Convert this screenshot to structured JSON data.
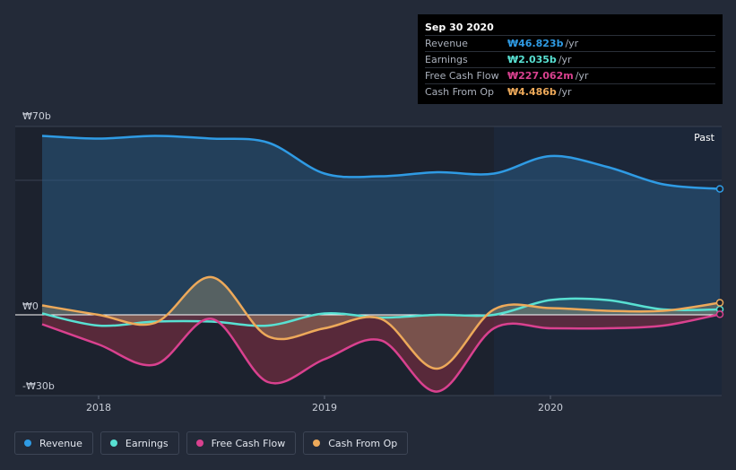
{
  "tooltip": {
    "date": "Sep 30 2020",
    "rows": [
      {
        "label": "Revenue",
        "value": "₩46.823b",
        "unit": "/yr",
        "color": "#2f9be4"
      },
      {
        "label": "Earnings",
        "value": "₩2.035b",
        "unit": "/yr",
        "color": "#58e0d2"
      },
      {
        "label": "Free Cash Flow",
        "value": "₩227.062m",
        "unit": "/yr",
        "color": "#d9418f"
      },
      {
        "label": "Cash From Op",
        "value": "₩4.486b",
        "unit": "/yr",
        "color": "#eda95a"
      }
    ]
  },
  "past_label": "Past",
  "legend": [
    {
      "label": "Revenue",
      "color": "#2f9be4"
    },
    {
      "label": "Earnings",
      "color": "#58e0d2"
    },
    {
      "label": "Free Cash Flow",
      "color": "#d9418f"
    },
    {
      "label": "Cash From Op",
      "color": "#eda95a"
    }
  ],
  "chart_data": {
    "type": "area",
    "x_tick_labels": [
      "2018",
      "2019",
      "2020"
    ],
    "x_ticks": [
      2018.0,
      2019.0,
      2020.0
    ],
    "xlim": [
      2017.75,
      2020.75
    ],
    "ylim": [
      -30,
      70
    ],
    "y_tick_labels": [
      "₩70b",
      "₩0",
      "-₩30b"
    ],
    "y_ticks": [
      70,
      0,
      -30
    ],
    "past_start": 2019.75,
    "series": [
      {
        "name": "Revenue",
        "color": "#2f9be4",
        "x": [
          2017.75,
          2018.0,
          2018.25,
          2018.5,
          2018.75,
          2019.0,
          2019.25,
          2019.5,
          2019.75,
          2020.0,
          2020.25,
          2020.5,
          2020.75
        ],
        "values": [
          66.5,
          65.5,
          66.5,
          65.5,
          64,
          52.5,
          51.5,
          53,
          52.5,
          59,
          55,
          48.5,
          46.8
        ]
      },
      {
        "name": "Earnings",
        "color": "#58e0d2",
        "x": [
          2017.75,
          2018.0,
          2018.25,
          2018.5,
          2018.75,
          2019.0,
          2019.25,
          2019.5,
          2019.75,
          2020.0,
          2020.25,
          2020.5,
          2020.75
        ],
        "values": [
          0.5,
          -4,
          -2.5,
          -2.5,
          -4,
          0.5,
          -1,
          0,
          0,
          5.5,
          5.5,
          2,
          2.0
        ]
      },
      {
        "name": "Free Cash Flow",
        "color": "#d9418f",
        "x": [
          2017.75,
          2018.0,
          2018.25,
          2018.5,
          2018.75,
          2019.0,
          2019.25,
          2019.5,
          2019.75,
          2020.0,
          2020.25,
          2020.5,
          2020.75
        ],
        "values": [
          -3.5,
          -11,
          -18.5,
          -1.5,
          -25,
          -16.5,
          -9.5,
          -28.5,
          -5,
          -5,
          -5,
          -4,
          0.2
        ]
      },
      {
        "name": "Cash From Op",
        "color": "#eda95a",
        "x": [
          2017.75,
          2018.0,
          2018.25,
          2018.5,
          2018.75,
          2019.0,
          2019.25,
          2019.5,
          2019.75,
          2020.0,
          2020.25,
          2020.5,
          2020.75
        ],
        "values": [
          3.5,
          0,
          -3,
          14,
          -8,
          -5,
          -1.5,
          -20,
          2,
          2.5,
          1.5,
          1.5,
          4.5
        ]
      }
    ]
  }
}
